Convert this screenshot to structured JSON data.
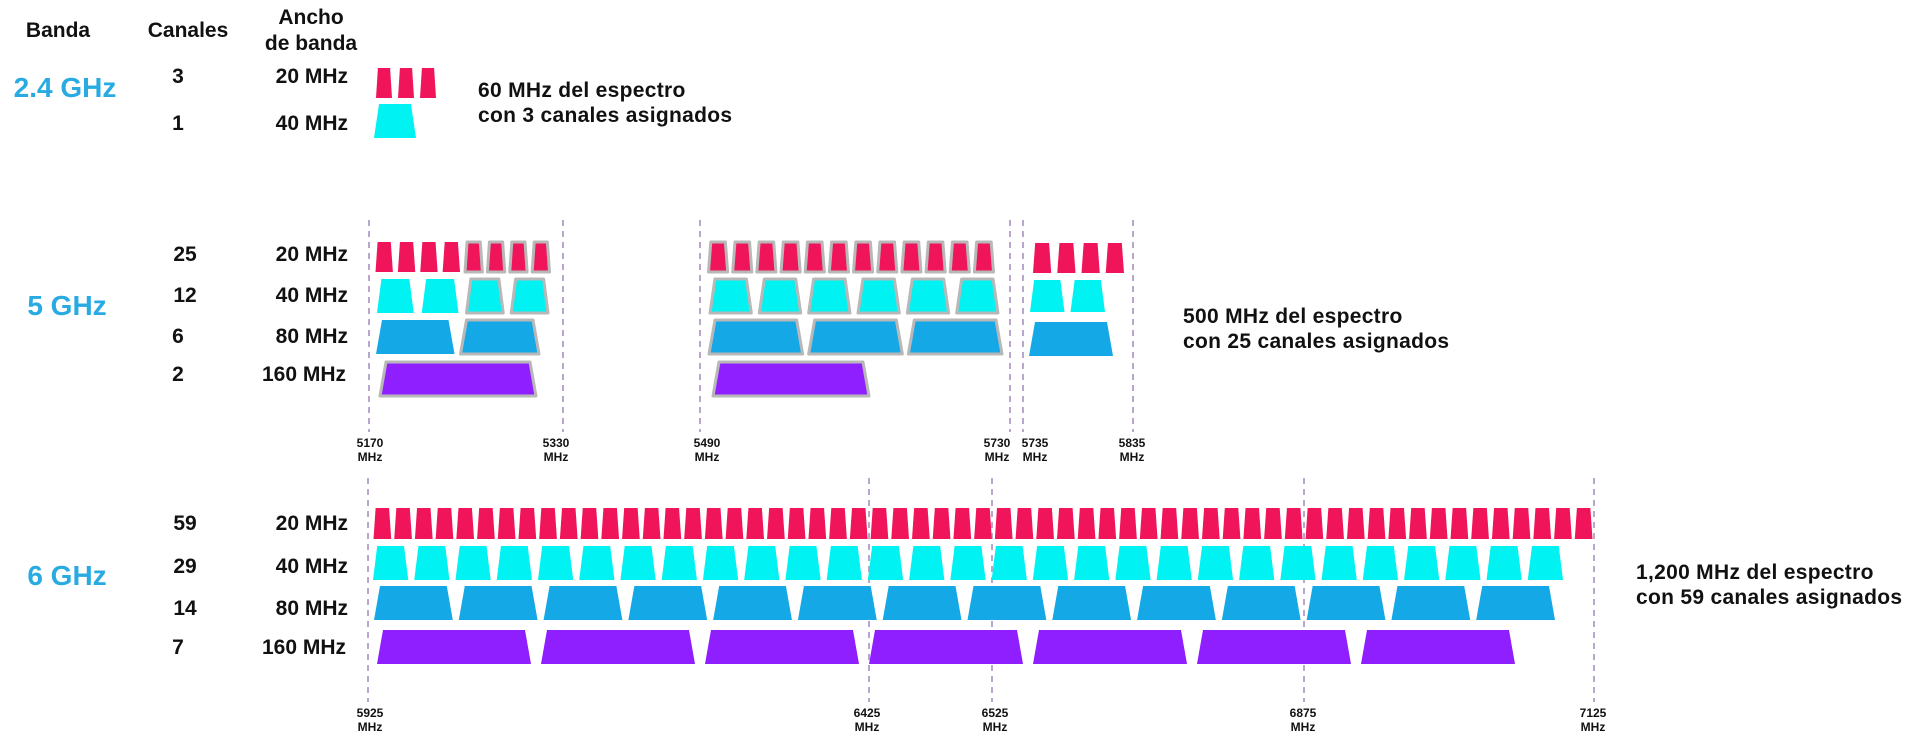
{
  "headers": {
    "band": "Banda",
    "channels": "Canales",
    "bandwidth_line1": "Ancho",
    "bandwidth_line2": "de banda"
  },
  "colors": {
    "band_label": "#29abe2",
    "w20": "#f0145a",
    "w40": "#00f2f2",
    "w80": "#15a8e6",
    "w160": "#8f1fff",
    "dfs_outline": "#b8b8b8",
    "divider": "#b9a6cc"
  },
  "bands": [
    {
      "label": "2.4 GHz",
      "rows": [
        {
          "channels": "3",
          "width": "20 MHz"
        },
        {
          "channels": "1",
          "width": "40 MHz"
        }
      ],
      "note_line1": "60 MHz del espectro",
      "note_line2": "con 3 canales asignados"
    },
    {
      "label": "5 GHz",
      "rows": [
        {
          "channels": "25",
          "width": "20 MHz"
        },
        {
          "channels": "12",
          "width": "40 MHz"
        },
        {
          "channels": "6",
          "width": "80 MHz"
        },
        {
          "channels": "2",
          "width": "160 MHz"
        }
      ],
      "note_line1": "500 MHz del espectro",
      "note_line2": "con 25 canales asignados",
      "ticks": [
        {
          "value": "5170",
          "unit": "MHz"
        },
        {
          "value": "5330",
          "unit": "MHz"
        },
        {
          "value": "5490",
          "unit": "MHz"
        },
        {
          "value": "5730",
          "unit": "MHz"
        },
        {
          "value": "5735",
          "unit": "MHz"
        },
        {
          "value": "5835",
          "unit": "MHz"
        }
      ]
    },
    {
      "label": "6 GHz",
      "rows": [
        {
          "channels": "59",
          "width": "20 MHz"
        },
        {
          "channels": "29",
          "width": "40 MHz"
        },
        {
          "channels": "14",
          "width": "80 MHz"
        },
        {
          "channels": "7",
          "width": "160 MHz"
        }
      ],
      "note_line1": "1,200 MHz del espectro",
      "note_line2": "con 59 canales asignados",
      "ticks": [
        {
          "value": "5925",
          "unit": "MHz"
        },
        {
          "value": "6425",
          "unit": "MHz"
        },
        {
          "value": "6525",
          "unit": "MHz"
        },
        {
          "value": "6875",
          "unit": "MHz"
        },
        {
          "value": "7125",
          "unit": "MHz"
        }
      ]
    }
  ]
}
